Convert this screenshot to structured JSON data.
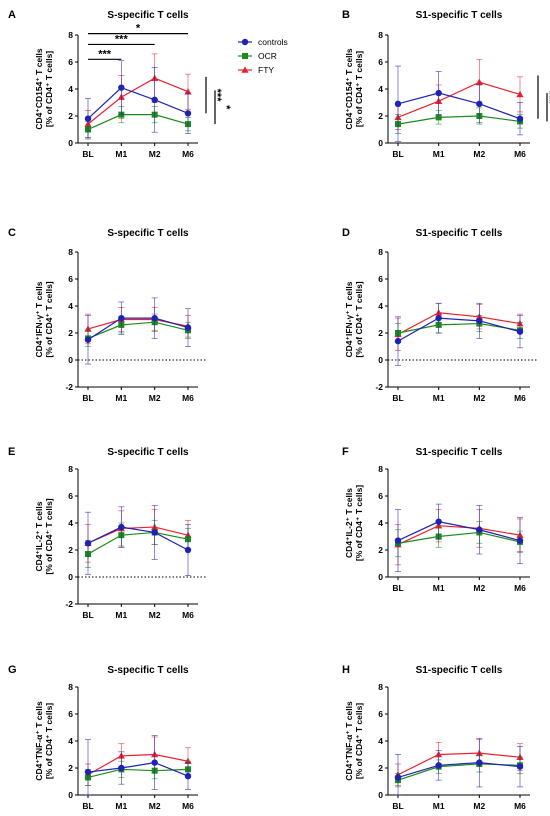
{
  "colors": {
    "controls": "#1f22b4",
    "OCR": "#1d8a1d",
    "FTY": "#e8232f",
    "axis": "#000000"
  },
  "legend": [
    {
      "name": "controls",
      "marker": "circle"
    },
    {
      "name": "OCR",
      "marker": "square"
    },
    {
      "name": "FTY",
      "marker": "triangle"
    }
  ],
  "chart_data": [
    {
      "panel": "A",
      "type": "line",
      "title": "S-specific T cells",
      "ylabel": [
        "CD4⁺CD154⁺ T cells",
        "[% of CD4⁺ T cells]"
      ],
      "categories": [
        "BL",
        "M1",
        "M2",
        "M6"
      ],
      "ylim": [
        0,
        8
      ],
      "yticks": [
        0,
        2,
        4,
        6,
        8
      ],
      "zero_line": false,
      "series": [
        {
          "name": "controls",
          "values": [
            1.8,
            4.1,
            3.2,
            2.2
          ],
          "err": [
            1.5,
            2.0,
            2.4,
            1.5
          ]
        },
        {
          "name": "OCR",
          "values": [
            1.0,
            2.1,
            2.1,
            1.4
          ],
          "err": [
            0.6,
            0.6,
            0.6,
            0.5
          ]
        },
        {
          "name": "FTY",
          "values": [
            1.4,
            3.4,
            4.8,
            3.8
          ],
          "err": [
            1.0,
            1.6,
            1.8,
            1.3
          ]
        }
      ],
      "brackets": [
        {
          "from": "BL",
          "to": "M1",
          "y": 6.2,
          "label": "***"
        },
        {
          "from": "BL",
          "to": "M2",
          "y": 7.3,
          "label": "***"
        },
        {
          "from": "BL",
          "to": "M6",
          "y": 8.1,
          "label": "*"
        }
      ],
      "side_bars": [
        {
          "low": 2.2,
          "high": 4.9,
          "label": "***",
          "offset": 0
        },
        {
          "low": 1.4,
          "high": 3.9,
          "label": "*",
          "offset": 1
        }
      ]
    },
    {
      "panel": "B",
      "type": "line",
      "title": "S1-specific T cells",
      "ylabel": [
        "CD4⁺CD154⁺ T cells",
        "[% of CD4⁺ T cells]"
      ],
      "categories": [
        "BL",
        "M1",
        "M2",
        "M6"
      ],
      "ylim": [
        0,
        8
      ],
      "yticks": [
        0,
        2,
        4,
        6,
        8
      ],
      "zero_line": false,
      "series": [
        {
          "name": "controls",
          "values": [
            2.9,
            3.7,
            2.9,
            1.8
          ],
          "err": [
            2.8,
            1.6,
            1.4,
            1.2
          ]
        },
        {
          "name": "OCR",
          "values": [
            1.4,
            1.9,
            2.0,
            1.6
          ],
          "err": [
            0.7,
            0.5,
            0.6,
            0.5
          ]
        },
        {
          "name": "FTY",
          "values": [
            1.9,
            3.1,
            4.5,
            3.6
          ],
          "err": [
            0.9,
            1.2,
            1.7,
            1.3
          ]
        }
      ],
      "brackets": [],
      "side_bars": [
        {
          "low": 1.8,
          "high": 5.0,
          "label": "***",
          "offset": 0
        },
        {
          "low": 1.6,
          "high": 3.7,
          "label": "*",
          "offset": 1
        }
      ]
    },
    {
      "panel": "C",
      "type": "line",
      "title": "S-specific T cells",
      "ylabel": [
        "CD4⁺IFN-γ⁺ T cells",
        "[% of CD4⁺ T cells]"
      ],
      "categories": [
        "BL",
        "M1",
        "M2",
        "M6"
      ],
      "ylim": [
        -2,
        8
      ],
      "yticks": [
        -2,
        0,
        2,
        4,
        6,
        8
      ],
      "zero_line": true,
      "series": [
        {
          "name": "controls",
          "values": [
            1.5,
            3.1,
            3.1,
            2.4
          ],
          "err": [
            1.8,
            1.2,
            1.5,
            1.4
          ]
        },
        {
          "name": "OCR",
          "values": [
            1.6,
            2.6,
            2.8,
            2.2
          ],
          "err": [
            0.6,
            0.6,
            0.6,
            0.6
          ]
        },
        {
          "name": "FTY",
          "values": [
            2.3,
            3.0,
            3.0,
            2.5
          ],
          "err": [
            1.1,
            0.9,
            0.9,
            0.8
          ]
        }
      ],
      "brackets": [],
      "side_bars": []
    },
    {
      "panel": "D",
      "type": "line",
      "title": "S1-specific T cells",
      "ylabel": [
        "CD4⁺IFN-γ⁺ T cells",
        "[% of CD4⁺ T cells]"
      ],
      "categories": [
        "BL",
        "M1",
        "M2",
        "M6"
      ],
      "ylim": [
        -2,
        8
      ],
      "yticks": [
        -2,
        0,
        2,
        4,
        6,
        8
      ],
      "zero_line": true,
      "series": [
        {
          "name": "controls",
          "values": [
            1.4,
            3.1,
            2.9,
            2.1
          ],
          "err": [
            1.8,
            1.1,
            1.3,
            1.2
          ]
        },
        {
          "name": "OCR",
          "values": [
            2.0,
            2.6,
            2.7,
            2.2
          ],
          "err": [
            0.7,
            0.6,
            0.6,
            0.6
          ]
        },
        {
          "name": "FTY",
          "values": [
            1.9,
            3.5,
            3.2,
            2.7
          ],
          "err": [
            1.2,
            0.7,
            0.9,
            0.7
          ]
        }
      ],
      "brackets": [],
      "side_bars": []
    },
    {
      "panel": "E",
      "type": "line",
      "title": "S-specific T cells",
      "ylabel": [
        "CD4⁺IL-2⁺ T cells",
        "[% of CD4⁺ T cells]"
      ],
      "categories": [
        "BL",
        "M1",
        "M2",
        "M6"
      ],
      "ylim": [
        -2,
        8
      ],
      "yticks": [
        -2,
        0,
        2,
        4,
        6,
        8
      ],
      "zero_line": true,
      "series": [
        {
          "name": "controls",
          "values": [
            2.5,
            3.7,
            3.3,
            2.0
          ],
          "err": [
            2.3,
            1.5,
            2.0,
            1.9
          ]
        },
        {
          "name": "OCR",
          "values": [
            1.7,
            3.1,
            3.3,
            2.8
          ],
          "err": [
            1.0,
            0.9,
            0.9,
            0.8
          ]
        },
        {
          "name": "FTY",
          "values": [
            2.5,
            3.6,
            3.7,
            3.1
          ],
          "err": [
            1.4,
            1.3,
            1.3,
            1.1
          ]
        }
      ],
      "brackets": [],
      "side_bars": []
    },
    {
      "panel": "F",
      "type": "line",
      "title": "S1-specific T cells",
      "ylabel": [
        "CD4⁺IL-2⁺ T cells",
        "[% of CD4⁺ T cells]"
      ],
      "categories": [
        "BL",
        "M1",
        "M2",
        "M6"
      ],
      "ylim": [
        0,
        8
      ],
      "yticks": [
        0,
        2,
        4,
        6,
        8
      ],
      "zero_line": false,
      "series": [
        {
          "name": "controls",
          "values": [
            2.7,
            4.1,
            3.5,
            2.7
          ],
          "err": [
            2.3,
            1.3,
            1.8,
            1.7
          ]
        },
        {
          "name": "OCR",
          "values": [
            2.5,
            3.0,
            3.3,
            2.6
          ],
          "err": [
            1.0,
            0.8,
            0.8,
            0.8
          ]
        },
        {
          "name": "FTY",
          "values": [
            2.4,
            3.8,
            3.6,
            3.1
          ],
          "err": [
            1.5,
            1.2,
            1.4,
            1.2
          ]
        }
      ],
      "brackets": [],
      "side_bars": []
    },
    {
      "panel": "G",
      "type": "line",
      "title": "S-specific T cells",
      "ylabel": [
        "CD4⁺TNF-α⁺ T cells",
        "[% of CD4⁺ T cells]"
      ],
      "categories": [
        "BL",
        "M1",
        "M2",
        "M6"
      ],
      "ylim": [
        0,
        8
      ],
      "yticks": [
        0,
        2,
        4,
        6,
        8
      ],
      "zero_line": false,
      "series": [
        {
          "name": "controls",
          "values": [
            1.7,
            2.0,
            2.4,
            1.4
          ],
          "err": [
            2.4,
            1.2,
            2.0,
            1.0
          ]
        },
        {
          "name": "OCR",
          "values": [
            1.3,
            1.9,
            1.8,
            1.9
          ],
          "err": [
            0.6,
            0.6,
            0.6,
            0.6
          ]
        },
        {
          "name": "FTY",
          "values": [
            1.5,
            2.9,
            3.0,
            2.5
          ],
          "err": [
            0.8,
            0.9,
            1.3,
            1.0
          ]
        }
      ],
      "brackets": [],
      "side_bars": []
    },
    {
      "panel": "H",
      "type": "line",
      "title": "S1-specific T cells",
      "ylabel": [
        "CD4⁺TNF-α⁺ T cells",
        "[% of CD4⁺ T cells]"
      ],
      "categories": [
        "BL",
        "M1",
        "M2",
        "M6"
      ],
      "ylim": [
        0,
        8
      ],
      "yticks": [
        0,
        2,
        4,
        6,
        8
      ],
      "zero_line": false,
      "series": [
        {
          "name": "controls",
          "values": [
            1.3,
            2.2,
            2.4,
            2.1
          ],
          "err": [
            1.7,
            1.1,
            1.8,
            1.5
          ]
        },
        {
          "name": "OCR",
          "values": [
            1.1,
            2.1,
            2.3,
            2.2
          ],
          "err": [
            0.5,
            0.5,
            0.6,
            0.6
          ]
        },
        {
          "name": "FTY",
          "values": [
            1.5,
            3.0,
            3.1,
            2.8
          ],
          "err": [
            0.8,
            0.9,
            1.0,
            1.0
          ]
        }
      ],
      "brackets": [],
      "side_bars": []
    }
  ]
}
